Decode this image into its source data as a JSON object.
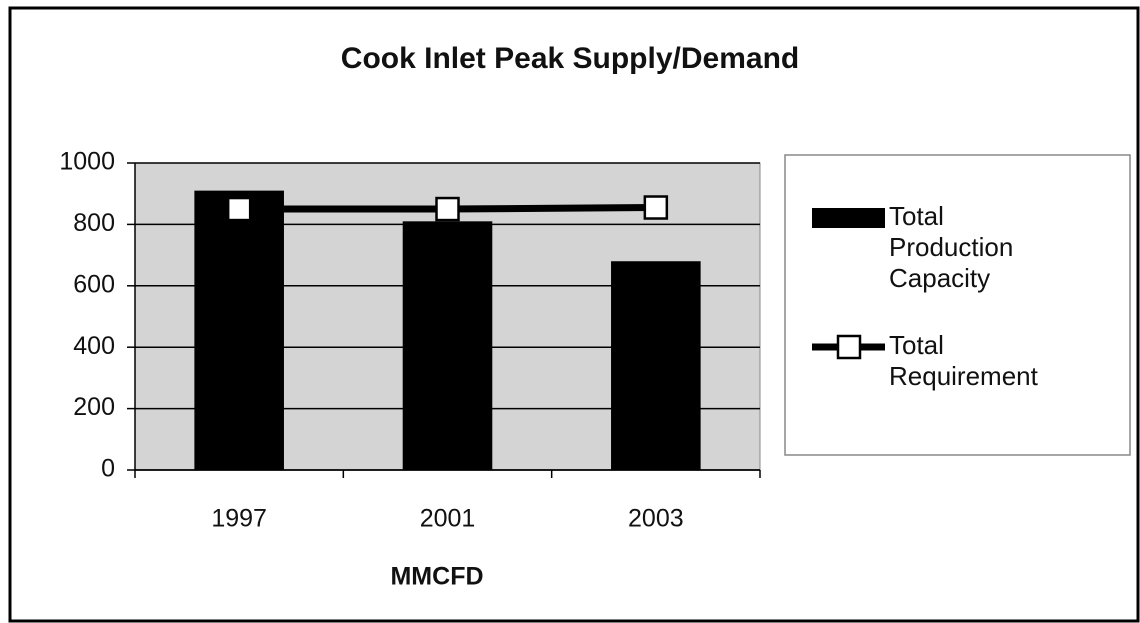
{
  "chart_data": {
    "type": "bar",
    "title": "Cook Inlet Peak Supply/Demand",
    "x_label": "MMCFD",
    "categories": [
      "1997",
      "2001",
      "2003"
    ],
    "series": [
      {
        "name": "Total Production Capacity",
        "type": "bar",
        "color": "#000000",
        "values": [
          910,
          810,
          680
        ]
      },
      {
        "name": "Total Requirement",
        "type": "line",
        "color": "#000000",
        "values": [
          850,
          850,
          855
        ]
      }
    ],
    "ylim": [
      0,
      1000
    ],
    "yticks": [
      0,
      200,
      400,
      600,
      800,
      1000
    ],
    "grid": true,
    "legend": "right"
  }
}
